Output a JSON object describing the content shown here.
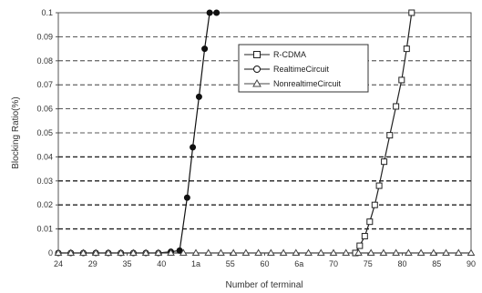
{
  "chart_data": {
    "type": "line",
    "xlabel": "Number of terminal",
    "ylabel": "Blocking Ratio(%)",
    "x_tick_labels": [
      "24",
      "29",
      "35",
      "40",
      "1a",
      "55",
      "60",
      "6a",
      "70",
      "75",
      "80",
      "85",
      "90"
    ],
    "y_tick_labels": [
      "0",
      "0.01",
      "0.02",
      "0.03",
      "0.04",
      "0.05",
      "0.06",
      "0.07",
      "0.08",
      "0.09",
      "0.1"
    ],
    "xlim": [
      24,
      90
    ],
    "ylim": [
      0,
      0.1
    ],
    "grid": "horizontal dashed",
    "legend_position": "upper-center",
    "series": [
      {
        "name": "R-CDMA",
        "marker": "square",
        "color": "#222222",
        "x": [
          71.5,
          72.2,
          73.0,
          73.8,
          74.6,
          75.3,
          76.1,
          77.0,
          78.0,
          78.9,
          79.7,
          80.5
        ],
        "y": [
          0.0,
          0.003,
          0.007,
          0.013,
          0.02,
          0.028,
          0.038,
          0.049,
          0.061,
          0.072,
          0.085,
          0.1
        ]
      },
      {
        "name": "RealtimeCircuit",
        "marker": "circle",
        "color": "#111111",
        "x": [
          24,
          26,
          28,
          30,
          32,
          34,
          36,
          38,
          40,
          42,
          43.4,
          44.6,
          45.5,
          46.5,
          47.4,
          48.2,
          49.3
        ],
        "y": [
          0,
          0,
          0,
          0,
          0,
          0,
          0,
          0,
          0,
          0.0005,
          0.001,
          0.023,
          0.044,
          0.065,
          0.085,
          0.1,
          0.1
        ]
      },
      {
        "name": "NonrealtimeCircuit",
        "marker": "triangle",
        "color": "#444444",
        "x": [
          24,
          26,
          28,
          30,
          32,
          34,
          36,
          38,
          40,
          42,
          44,
          46,
          48,
          50,
          52,
          54,
          56,
          58,
          60,
          62,
          64,
          66,
          68,
          70,
          72,
          74,
          76,
          78,
          80,
          82,
          84,
          86,
          88,
          90
        ],
        "y": [
          0,
          0,
          0,
          0,
          0,
          0,
          0,
          0,
          0,
          0,
          0,
          0,
          0,
          0,
          0,
          0,
          0,
          0,
          0,
          0,
          0,
          0,
          0,
          0,
          0,
          0,
          0,
          0,
          0,
          0,
          0,
          0,
          0,
          0
        ]
      }
    ]
  }
}
